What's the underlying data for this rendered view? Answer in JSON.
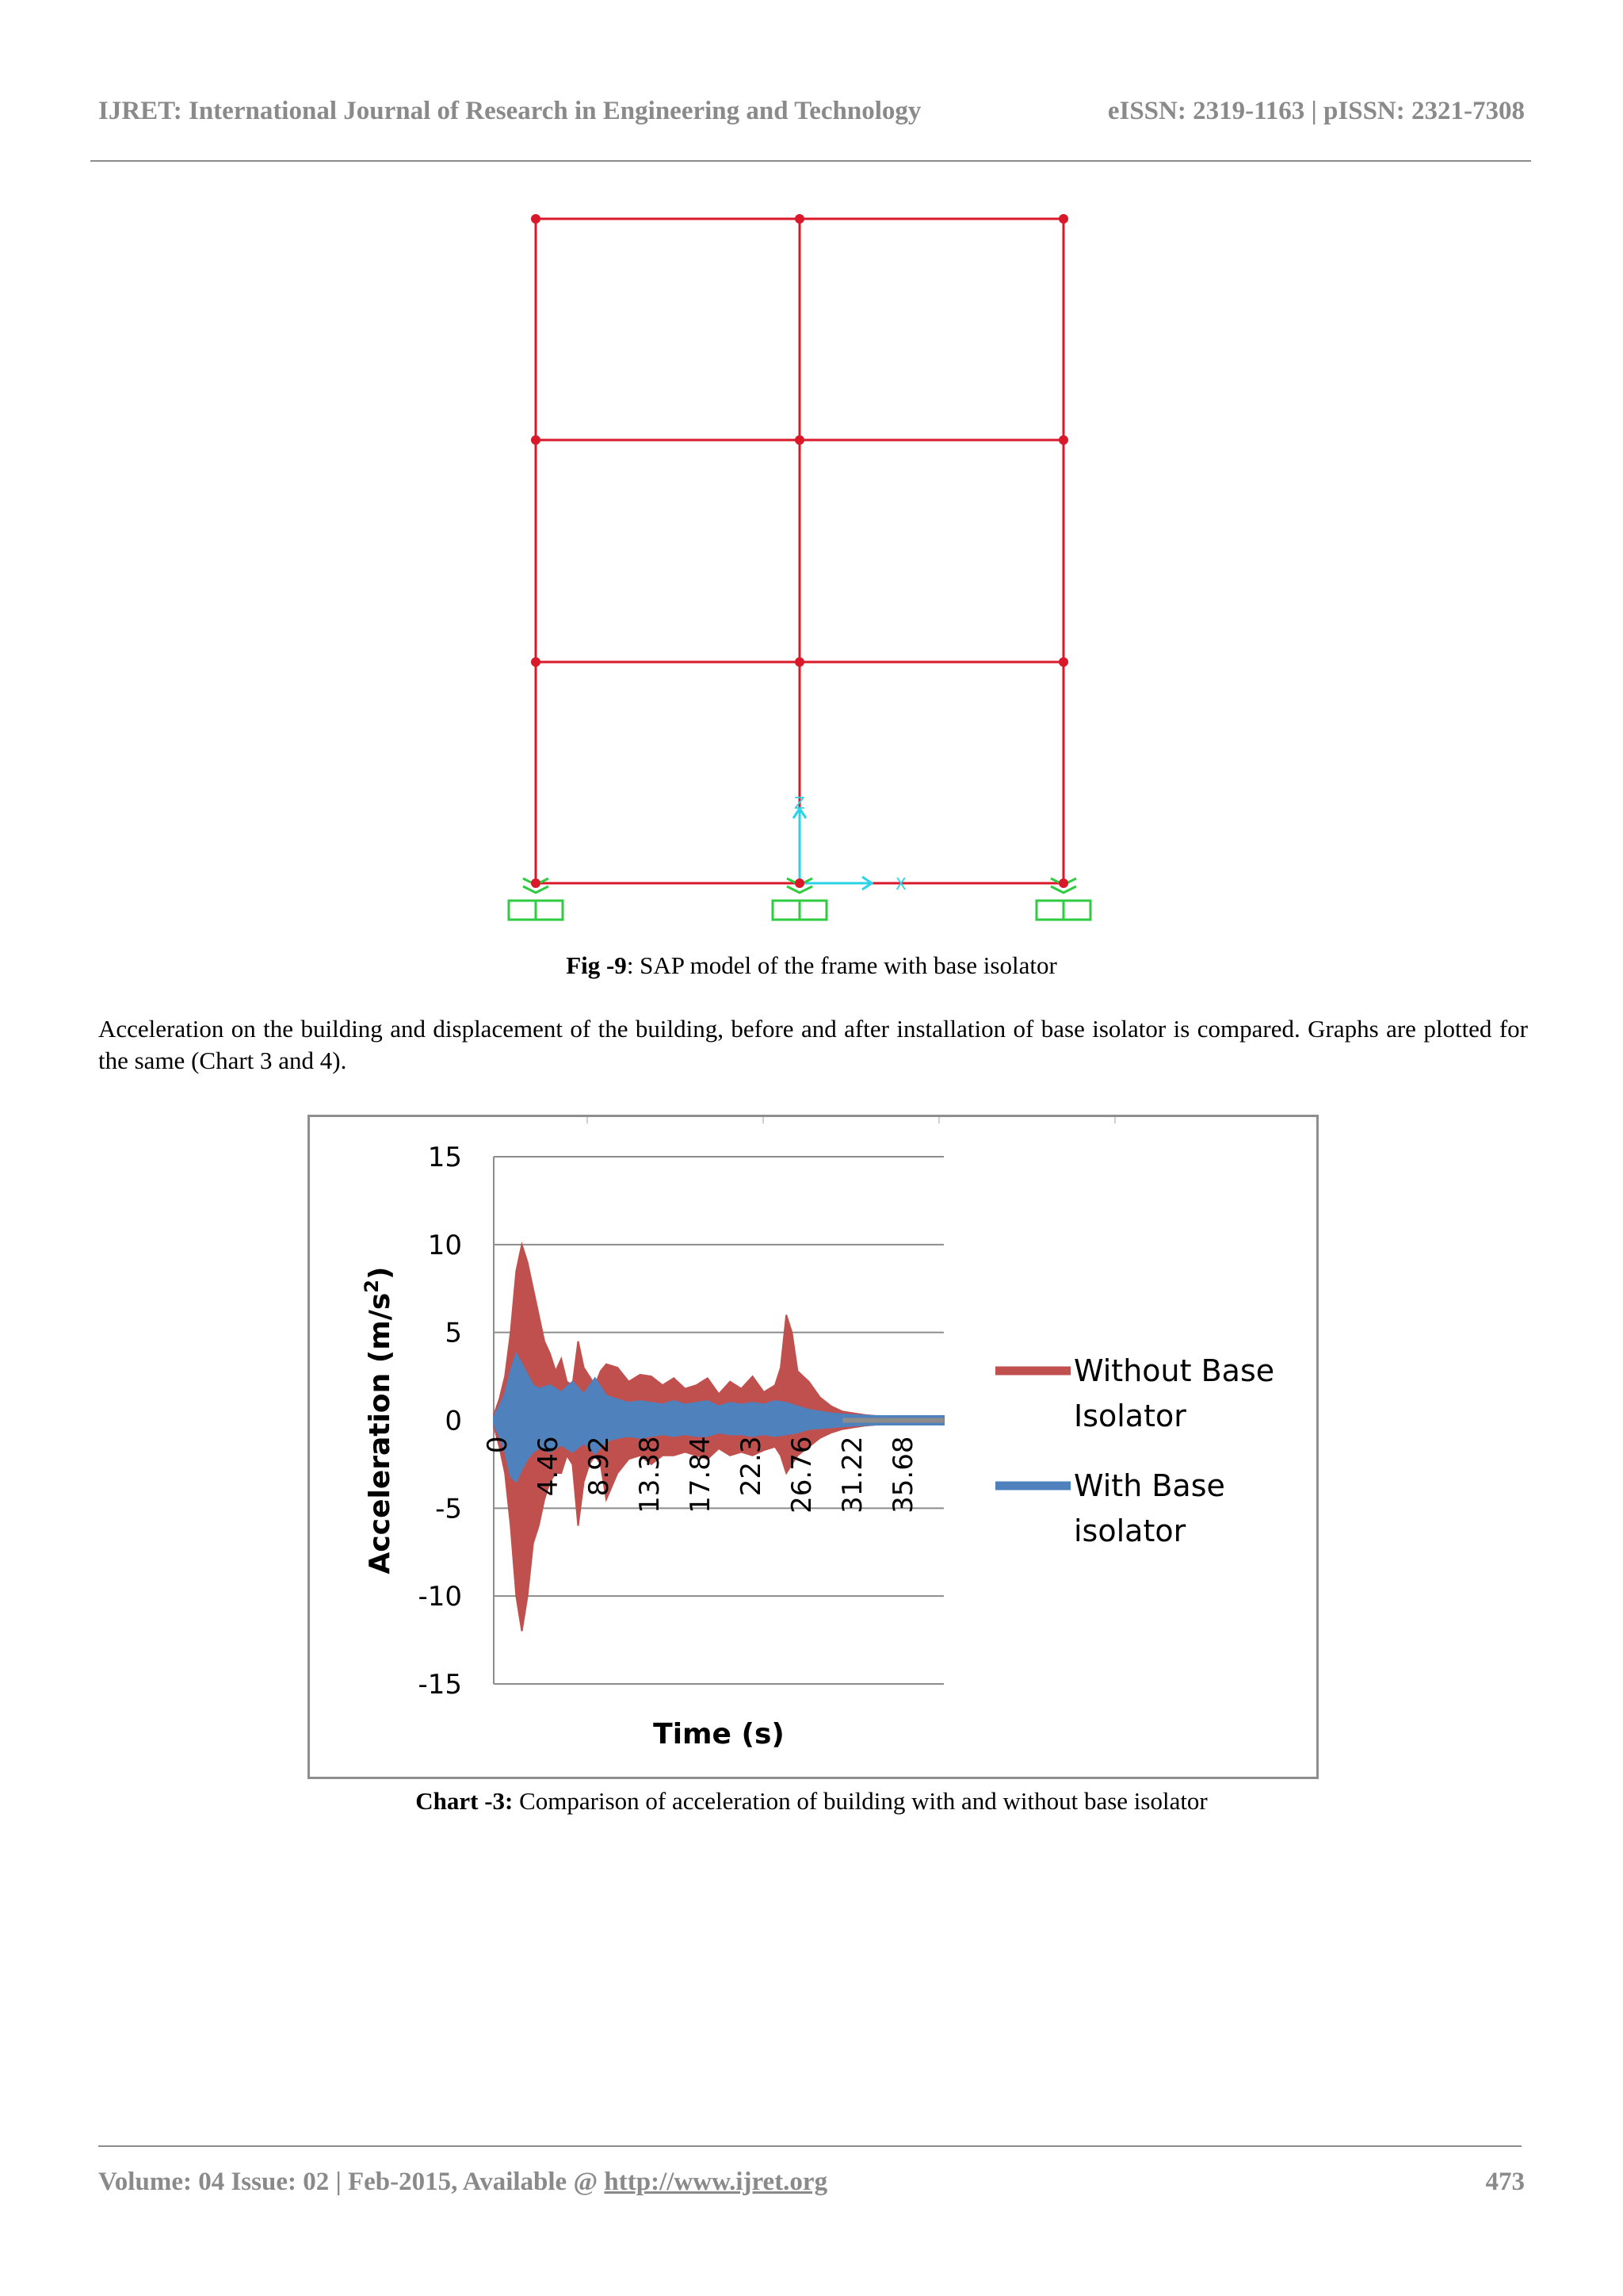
{
  "header": {
    "journal": "IJRET: International Journal of Research in Engineering and Technology",
    "issn": "eISSN: 2319-1163 | pISSN: 2321-7308"
  },
  "figure9": {
    "caption_label": "Fig -9",
    "caption_text": ": SAP model of the frame with base isolator",
    "axis_z": "Z",
    "axis_x": "X",
    "frame_color": "#d9182a",
    "support_color": "#2ecc40",
    "axis_color": "#2bd3e6"
  },
  "paragraph": "Acceleration on the building and displacement of the building, before and after installation of base isolator is compared. Graphs are plotted for the same (Chart 3 and 4).",
  "chart_data": {
    "type": "line",
    "xlabel": "Time (s)",
    "ylabel": "Acceleration (m/s²)",
    "ylabel_main": "Acceleration (m/s",
    "ylabel_sup": "2",
    "ylabel_end": ")",
    "ylim": [
      -15,
      15
    ],
    "xlim": [
      0,
      40
    ],
    "yticks": [
      "15",
      "10",
      "5",
      "0",
      "-5",
      "-10",
      "-15"
    ],
    "xticks": [
      "0",
      "4.46",
      "8.92",
      "13.38",
      "17.84",
      "22.3",
      "26.76",
      "31.22",
      "35.68"
    ],
    "grid": "horizontal",
    "legend_position": "right",
    "series": [
      {
        "name_line1": "Without Base",
        "name_line2": "Isolator",
        "color": "#c0504d",
        "envelope": {
          "t": [
            0,
            0.5,
            1,
            1.5,
            2,
            2.5,
            3,
            3.5,
            4,
            4.5,
            5,
            5.5,
            6,
            6.5,
            7,
            7.5,
            8,
            8.5,
            9,
            9.5,
            10,
            11,
            12,
            13,
            14,
            15,
            16,
            17,
            18,
            19,
            20,
            21,
            22,
            23,
            24,
            25,
            25.5,
            26,
            26.5,
            27,
            28,
            29,
            30,
            31,
            32,
            33,
            34,
            35,
            36,
            37,
            38,
            39,
            40
          ],
          "upper": [
            0.3,
            1.2,
            2.5,
            5.0,
            8.5,
            10.0,
            9.0,
            7.5,
            6.0,
            4.5,
            3.8,
            2.8,
            3.5,
            2.2,
            2.0,
            4.5,
            3.0,
            2.5,
            2.0,
            2.8,
            3.2,
            3.0,
            2.2,
            2.6,
            2.5,
            2.0,
            2.4,
            1.8,
            2.0,
            2.4,
            1.5,
            2.2,
            1.8,
            2.5,
            1.6,
            2.0,
            3.0,
            6.0,
            5.0,
            2.8,
            2.2,
            1.3,
            0.8,
            0.5,
            0.4,
            0.3,
            0.25,
            0.2,
            0.2,
            0.15,
            0.15,
            0.15,
            0.15
          ],
          "lower": [
            -0.3,
            -1.5,
            -3.0,
            -6.0,
            -10.0,
            -12.0,
            -10.0,
            -7.0,
            -6.0,
            -4.5,
            -3.5,
            -3.0,
            -3.0,
            -2.0,
            -2.5,
            -6.0,
            -3.5,
            -2.5,
            -2.0,
            -2.5,
            -4.5,
            -3.0,
            -2.2,
            -2.0,
            -2.5,
            -2.0,
            -2.0,
            -1.8,
            -2.0,
            -2.2,
            -1.6,
            -2.0,
            -1.8,
            -2.0,
            -1.7,
            -1.5,
            -2.0,
            -3.0,
            -2.5,
            -2.0,
            -1.5,
            -1.0,
            -0.7,
            -0.5,
            -0.4,
            -0.3,
            -0.25,
            -0.2,
            -0.2,
            -0.15,
            -0.15,
            -0.15,
            -0.15
          ]
        }
      },
      {
        "name_line1": "With Base",
        "name_line2": "isolator",
        "color": "#4f81bd",
        "envelope": {
          "t": [
            0,
            0.5,
            1,
            1.5,
            2,
            2.5,
            3,
            3.5,
            4,
            5,
            6,
            7,
            8,
            9,
            10,
            11,
            12,
            13,
            14,
            15,
            16,
            17,
            18,
            19,
            20,
            21,
            22,
            23,
            24,
            25,
            26,
            27,
            28,
            29,
            30,
            31,
            32,
            34,
            36,
            38,
            40
          ],
          "upper": [
            0.2,
            0.8,
            1.5,
            2.8,
            3.8,
            3.2,
            2.6,
            2.0,
            1.8,
            2.0,
            1.6,
            2.2,
            1.5,
            2.4,
            1.4,
            1.2,
            1.0,
            1.1,
            1.0,
            0.9,
            1.1,
            0.9,
            1.0,
            1.1,
            0.8,
            1.0,
            0.9,
            1.0,
            0.9,
            1.1,
            1.0,
            0.8,
            0.6,
            0.5,
            0.4,
            0.35,
            0.3,
            0.25,
            0.25,
            0.25,
            0.25
          ],
          "lower": [
            -0.2,
            -0.9,
            -1.8,
            -3.2,
            -3.5,
            -2.8,
            -2.2,
            -1.8,
            -1.6,
            -1.8,
            -1.4,
            -1.8,
            -1.3,
            -1.9,
            -1.2,
            -1.0,
            -0.9,
            -1.0,
            -0.9,
            -0.8,
            -0.9,
            -0.8,
            -0.9,
            -0.9,
            -0.7,
            -0.8,
            -0.8,
            -0.9,
            -0.8,
            -0.9,
            -0.8,
            -0.7,
            -0.5,
            -0.45,
            -0.4,
            -0.35,
            -0.3,
            -0.25,
            -0.25,
            -0.25,
            -0.25
          ]
        }
      }
    ],
    "caption_label": "Chart -3:",
    "caption_text": " Comparison of acceleration of building with and without base isolator"
  },
  "footer": {
    "text": "Volume: 04 Issue: 02 | Feb-2015, Available @ ",
    "link": "http://www.ijret.org",
    "page": "473"
  }
}
